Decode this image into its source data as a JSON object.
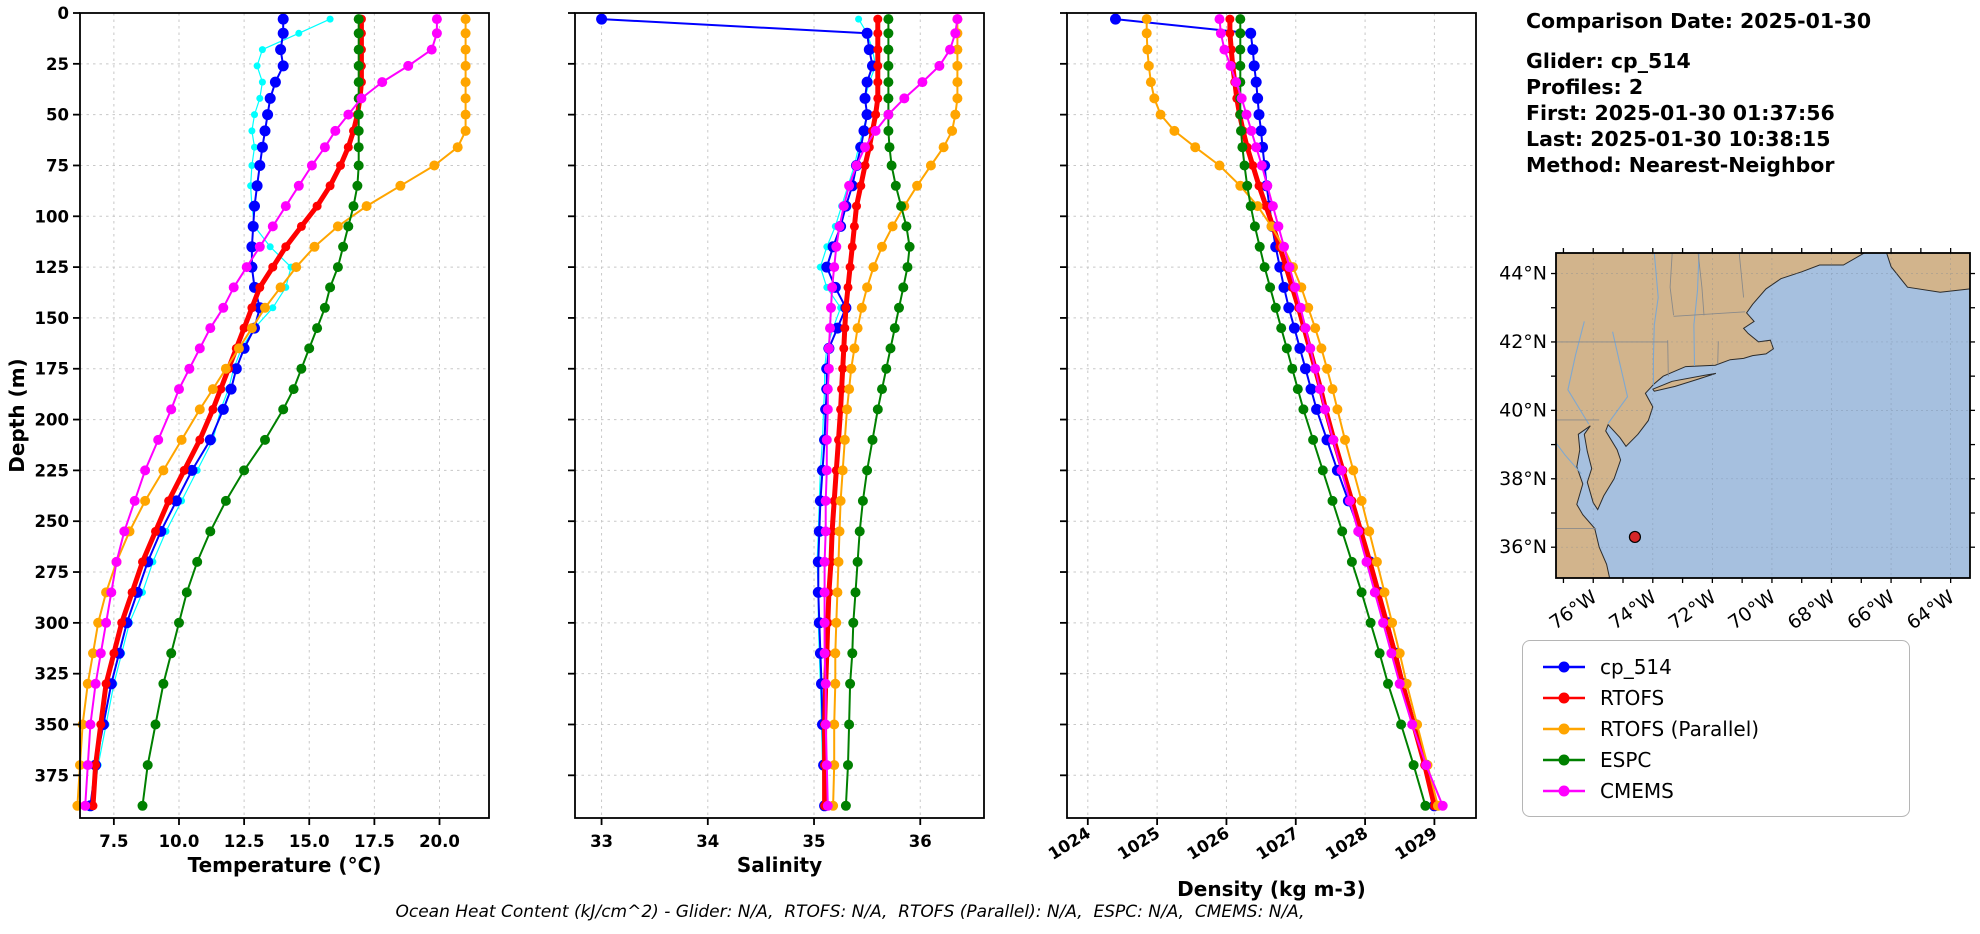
{
  "info": {
    "comparison_date": "Comparison Date: 2025-01-30",
    "glider": "Glider: cp_514",
    "profiles": "Profiles: 2",
    "first": "First: 2025-01-30 01:37:56",
    "last": "Last: 2025-01-30 10:38:15",
    "method": "Method: Nearest-Neighbor"
  },
  "footnote": "Ocean Heat Content (kJ/cm^2) - Glider: N/A,  RTOFS: N/A,  RTOFS (Parallel): N/A,  ESPC: N/A,  CMEMS: N/A,",
  "legend": {
    "entries": [
      {
        "label": "cp_514",
        "color": "#0000ff"
      },
      {
        "label": "RTOFS",
        "color": "#ff0000"
      },
      {
        "label": "RTOFS (Parallel)",
        "color": "#ffa500"
      },
      {
        "label": "ESPC",
        "color": "#008000"
      },
      {
        "label": "CMEMS",
        "color": "#ff00ff"
      }
    ]
  },
  "axes": {
    "ylabel": "Depth (m)",
    "ylim": [
      0,
      396
    ],
    "depth_ticks": [
      0,
      25,
      50,
      75,
      100,
      125,
      150,
      175,
      200,
      225,
      250,
      275,
      300,
      325,
      350,
      375
    ]
  },
  "chart_data": [
    {
      "id": "temperature",
      "type": "line",
      "xlabel": "Temperature (°C)",
      "xlim": [
        6.2,
        21.9
      ],
      "xticks": [
        7.5,
        10,
        12.5,
        15,
        17.5,
        20
      ],
      "xtick_labels": [
        "7.5",
        "10.0",
        "12.5",
        "15.0",
        "17.5",
        "20.0"
      ],
      "depths": [
        3,
        10,
        18,
        26,
        34,
        42,
        50,
        58,
        66,
        75,
        85,
        95,
        105,
        115,
        125,
        135,
        145,
        155,
        165,
        175,
        185,
        195,
        210,
        225,
        240,
        255,
        270,
        285,
        300,
        315,
        330,
        350,
        370,
        390
      ],
      "series": [
        {
          "name": "glider-raw",
          "color": "#00ffff",
          "lw": 1.2,
          "ms": 3.5,
          "values": [
            15.8,
            14.6,
            13.2,
            13.0,
            13.2,
            13.1,
            12.9,
            12.8,
            12.9,
            12.8,
            12.75,
            12.8,
            12.9,
            13.5,
            14.3,
            14.1,
            13.6,
            12.9,
            12.4,
            12.1,
            11.9,
            11.6,
            11.3,
            10.7,
            10.1,
            9.5,
            9.0,
            8.6,
            8.1,
            7.8,
            7.5,
            7.2,
            6.9,
            6.7
          ]
        },
        {
          "name": "cp_514",
          "color": "#0000ff",
          "lw": 2,
          "ms": 5.5,
          "values": [
            14.0,
            14.0,
            13.9,
            14.0,
            13.7,
            13.5,
            13.4,
            13.3,
            13.2,
            13.1,
            13.0,
            12.9,
            12.85,
            12.8,
            12.8,
            12.9,
            13.1,
            12.9,
            12.5,
            12.2,
            12.0,
            11.7,
            11.2,
            10.5,
            9.9,
            9.3,
            8.8,
            8.4,
            8.0,
            7.7,
            7.4,
            7.1,
            6.8,
            6.6
          ]
        },
        {
          "name": "RTOFS",
          "color": "#ff0000",
          "lw": 5,
          "ms": 4.5,
          "values": [
            17.0,
            17.0,
            17.0,
            17.0,
            17.0,
            16.95,
            16.85,
            16.7,
            16.5,
            16.2,
            15.8,
            15.3,
            14.7,
            14.1,
            13.6,
            13.1,
            12.8,
            12.5,
            12.2,
            11.9,
            11.6,
            11.3,
            10.8,
            10.2,
            9.6,
            9.1,
            8.6,
            8.2,
            7.8,
            7.5,
            7.2,
            7.0,
            6.8,
            6.7
          ]
        },
        {
          "name": "RTOFS-Parallel",
          "color": "#ffa500",
          "lw": 2,
          "ms": 5,
          "values": [
            21.0,
            21.0,
            21.0,
            21.0,
            21.0,
            21.0,
            21.0,
            21.0,
            20.7,
            19.8,
            18.5,
            17.2,
            16.1,
            15.2,
            14.5,
            13.9,
            13.3,
            12.8,
            12.3,
            11.8,
            11.3,
            10.8,
            10.1,
            9.4,
            8.7,
            8.1,
            7.6,
            7.2,
            6.9,
            6.7,
            6.5,
            6.3,
            6.2,
            6.1
          ]
        },
        {
          "name": "ESPC",
          "color": "#008000",
          "lw": 2,
          "ms": 5,
          "values": [
            16.9,
            16.9,
            16.9,
            16.9,
            16.9,
            16.9,
            16.9,
            16.9,
            16.9,
            16.9,
            16.85,
            16.7,
            16.5,
            16.3,
            16.1,
            15.8,
            15.6,
            15.3,
            15.0,
            14.7,
            14.4,
            14.0,
            13.3,
            12.5,
            11.8,
            11.2,
            10.7,
            10.3,
            10.0,
            9.7,
            9.4,
            9.1,
            8.8,
            8.6
          ]
        },
        {
          "name": "CMEMS",
          "color": "#ff00ff",
          "lw": 2,
          "ms": 5,
          "values": [
            19.9,
            19.9,
            19.7,
            18.8,
            17.8,
            17.0,
            16.5,
            16.0,
            15.6,
            15.1,
            14.6,
            14.1,
            13.6,
            13.1,
            12.6,
            12.1,
            11.7,
            11.2,
            10.8,
            10.4,
            10.0,
            9.7,
            9.2,
            8.7,
            8.3,
            7.9,
            7.6,
            7.4,
            7.2,
            7.0,
            6.8,
            6.6,
            6.5,
            6.4
          ]
        }
      ]
    },
    {
      "id": "salinity",
      "type": "line",
      "xlabel": "Salinity",
      "xlim": [
        32.75,
        36.6
      ],
      "xticks": [
        33,
        34,
        35,
        36
      ],
      "xtick_labels": [
        "33",
        "34",
        "35",
        "36"
      ],
      "depths": [
        3,
        10,
        18,
        26,
        34,
        42,
        50,
        58,
        66,
        75,
        85,
        95,
        105,
        115,
        125,
        135,
        145,
        155,
        165,
        175,
        185,
        195,
        210,
        225,
        240,
        255,
        270,
        285,
        300,
        315,
        330,
        350,
        370,
        390
      ],
      "series": [
        {
          "name": "glider-raw",
          "color": "#00ffff",
          "lw": 1.2,
          "ms": 3.5,
          "values": [
            35.42,
            35.5,
            35.55,
            35.58,
            35.52,
            35.48,
            35.5,
            35.46,
            35.42,
            35.38,
            35.32,
            35.26,
            35.2,
            35.12,
            35.06,
            35.12,
            35.25,
            35.18,
            35.12,
            35.1,
            35.1,
            35.09,
            35.08,
            35.06,
            35.05,
            35.04,
            35.03,
            35.04,
            35.04,
            35.05,
            35.06,
            35.07,
            35.08,
            35.09
          ]
        },
        {
          "name": "cp_514",
          "color": "#0000ff",
          "lw": 2,
          "ms": 5.5,
          "values": [
            33.0,
            35.5,
            35.52,
            35.55,
            35.5,
            35.48,
            35.5,
            35.47,
            35.44,
            35.4,
            35.36,
            35.3,
            35.25,
            35.18,
            35.12,
            35.2,
            35.3,
            35.22,
            35.14,
            35.12,
            35.12,
            35.11,
            35.1,
            35.08,
            35.06,
            35.05,
            35.04,
            35.04,
            35.05,
            35.06,
            35.07,
            35.08,
            35.09,
            35.1
          ]
        },
        {
          "name": "RTOFS",
          "color": "#ff0000",
          "lw": 5,
          "ms": 4.5,
          "values": [
            35.6,
            35.6,
            35.6,
            35.6,
            35.6,
            35.6,
            35.58,
            35.55,
            35.52,
            35.48,
            35.44,
            35.4,
            35.38,
            35.36,
            35.34,
            35.32,
            35.3,
            35.29,
            35.28,
            35.27,
            35.26,
            35.25,
            35.23,
            35.21,
            35.19,
            35.17,
            35.16,
            35.14,
            35.13,
            35.12,
            35.11,
            35.1,
            35.1,
            35.1
          ]
        },
        {
          "name": "RTOFS-Parallel",
          "color": "#ffa500",
          "lw": 2,
          "ms": 5,
          "values": [
            36.35,
            36.35,
            36.35,
            36.35,
            36.35,
            36.35,
            36.33,
            36.3,
            36.22,
            36.1,
            35.97,
            35.85,
            35.74,
            35.64,
            35.56,
            35.5,
            35.45,
            35.41,
            35.38,
            35.35,
            35.33,
            35.31,
            35.29,
            35.27,
            35.25,
            35.24,
            35.23,
            35.22,
            35.21,
            35.2,
            35.2,
            35.19,
            35.19,
            35.18
          ]
        },
        {
          "name": "ESPC",
          "color": "#008000",
          "lw": 2,
          "ms": 5,
          "values": [
            35.7,
            35.7,
            35.7,
            35.7,
            35.7,
            35.7,
            35.7,
            35.7,
            35.71,
            35.73,
            35.77,
            35.82,
            35.87,
            35.9,
            35.88,
            35.84,
            35.8,
            35.76,
            35.72,
            35.68,
            35.64,
            35.6,
            35.55,
            35.5,
            35.46,
            35.43,
            35.41,
            35.39,
            35.37,
            35.36,
            35.34,
            35.33,
            35.32,
            35.3
          ]
        },
        {
          "name": "CMEMS",
          "color": "#ff00ff",
          "lw": 2,
          "ms": 5,
          "values": [
            36.35,
            36.33,
            36.28,
            36.18,
            36.02,
            35.85,
            35.7,
            35.58,
            35.48,
            35.4,
            35.33,
            35.28,
            35.24,
            35.21,
            35.19,
            35.17,
            35.16,
            35.15,
            35.14,
            35.14,
            35.13,
            35.13,
            35.12,
            35.12,
            35.11,
            35.11,
            35.1,
            35.1,
            35.1,
            35.1,
            35.11,
            35.11,
            35.12,
            35.13
          ]
        }
      ]
    },
    {
      "id": "density",
      "type": "line",
      "xlabel": "Density (kg m-3)",
      "xlim": [
        1023.7,
        1029.6
      ],
      "xticks": [
        1024,
        1025,
        1026,
        1027,
        1028,
        1029
      ],
      "xtick_labels": [
        "1024",
        "1025",
        "1026",
        "1027",
        "1028",
        "1029"
      ],
      "depths": [
        3,
        10,
        18,
        26,
        34,
        42,
        50,
        58,
        66,
        75,
        85,
        95,
        105,
        115,
        125,
        135,
        145,
        155,
        165,
        175,
        185,
        195,
        210,
        225,
        240,
        255,
        270,
        285,
        300,
        315,
        330,
        350,
        370,
        390
      ],
      "series": [
        {
          "name": "cp_514",
          "color": "#0000ff",
          "lw": 2,
          "ms": 5.5,
          "values": [
            1024.4,
            1026.35,
            1026.38,
            1026.4,
            1026.43,
            1026.45,
            1026.47,
            1026.5,
            1026.52,
            1026.55,
            1026.58,
            1026.62,
            1026.66,
            1026.71,
            1026.77,
            1026.83,
            1026.9,
            1026.98,
            1027.06,
            1027.14,
            1027.22,
            1027.3,
            1027.45,
            1027.6,
            1027.76,
            1027.92,
            1028.07,
            1028.2,
            1028.33,
            1028.45,
            1028.56,
            1028.72,
            1028.88,
            1029.0
          ]
        },
        {
          "name": "RTOFS",
          "color": "#ff0000",
          "lw": 5,
          "ms": 4.5,
          "values": [
            1026.05,
            1026.05,
            1026.07,
            1026.09,
            1026.12,
            1026.15,
            1026.19,
            1026.24,
            1026.3,
            1026.38,
            1026.47,
            1026.57,
            1026.67,
            1026.77,
            1026.86,
            1026.95,
            1027.04,
            1027.12,
            1027.2,
            1027.28,
            1027.36,
            1027.43,
            1027.55,
            1027.68,
            1027.81,
            1027.94,
            1028.07,
            1028.19,
            1028.31,
            1028.43,
            1028.54,
            1028.7,
            1028.86,
            1029.0
          ]
        },
        {
          "name": "RTOFS-Parallel",
          "color": "#ffa500",
          "lw": 2,
          "ms": 5,
          "values": [
            1024.85,
            1024.85,
            1024.86,
            1024.88,
            1024.91,
            1024.96,
            1025.05,
            1025.25,
            1025.55,
            1025.9,
            1026.2,
            1026.45,
            1026.65,
            1026.82,
            1026.96,
            1027.08,
            1027.18,
            1027.28,
            1027.37,
            1027.45,
            1027.53,
            1027.6,
            1027.71,
            1027.83,
            1027.95,
            1028.06,
            1028.17,
            1028.28,
            1028.39,
            1028.5,
            1028.6,
            1028.75,
            1028.9,
            1029.05
          ]
        },
        {
          "name": "ESPC",
          "color": "#008000",
          "lw": 2,
          "ms": 5,
          "values": [
            1026.2,
            1026.2,
            1026.2,
            1026.2,
            1026.2,
            1026.2,
            1026.2,
            1026.21,
            1026.23,
            1026.26,
            1026.3,
            1026.35,
            1026.41,
            1026.48,
            1026.55,
            1026.63,
            1026.71,
            1026.79,
            1026.87,
            1026.95,
            1027.03,
            1027.11,
            1027.25,
            1027.39,
            1027.53,
            1027.67,
            1027.81,
            1027.95,
            1028.08,
            1028.21,
            1028.33,
            1028.52,
            1028.7,
            1028.87
          ]
        },
        {
          "name": "CMEMS",
          "color": "#ff00ff",
          "lw": 2,
          "ms": 5,
          "values": [
            1025.9,
            1025.92,
            1025.97,
            1026.06,
            1026.14,
            1026.22,
            1026.29,
            1026.36,
            1026.43,
            1026.51,
            1026.59,
            1026.67,
            1026.75,
            1026.83,
            1026.91,
            1026.99,
            1027.07,
            1027.14,
            1027.21,
            1027.28,
            1027.35,
            1027.42,
            1027.54,
            1027.66,
            1027.78,
            1027.9,
            1028.02,
            1028.14,
            1028.26,
            1028.38,
            1028.5,
            1028.68,
            1028.88,
            1029.12
          ]
        }
      ]
    }
  ],
  "map": {
    "extent": {
      "lon": [
        -77.25,
        -63.35
      ],
      "lat": [
        35.1,
        44.6
      ]
    },
    "colors": {
      "ocean": "#a6c0df",
      "land": "#d2b48c",
      "coast": "#2b2b2b",
      "river": "#7fa8d0",
      "border": "#8a8a8a"
    },
    "lat_ticks": [
      {
        "v": 44,
        "label": "44°N"
      },
      {
        "v": 42,
        "label": "42°N"
      },
      {
        "v": 40,
        "label": "40°N"
      },
      {
        "v": 38,
        "label": "38°N"
      },
      {
        "v": 36,
        "label": "36°N"
      }
    ],
    "lon_ticks": [
      {
        "v": -76,
        "label": "76°W"
      },
      {
        "v": -74,
        "label": "74°W"
      },
      {
        "v": -72,
        "label": "72°W"
      },
      {
        "v": -70,
        "label": "70°W"
      },
      {
        "v": -68,
        "label": "68°W"
      },
      {
        "v": -66,
        "label": "66°W"
      },
      {
        "v": -64,
        "label": "64°W"
      }
    ],
    "marker": {
      "lon": -74.6,
      "lat": 36.3,
      "color": "#d62728"
    }
  }
}
